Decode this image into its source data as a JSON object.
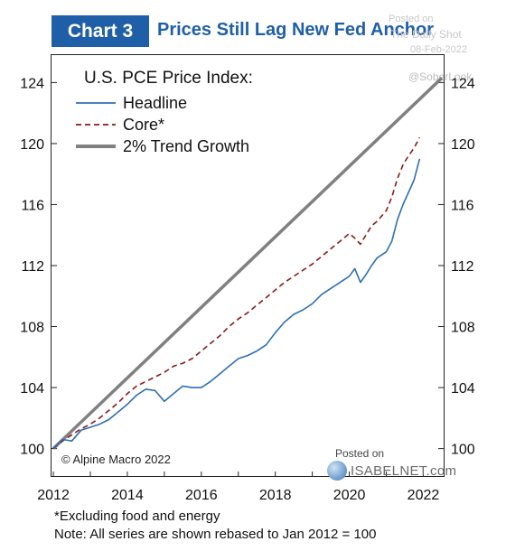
{
  "header": {
    "chart_number": "Chart 3",
    "title": "Prices Still Lag New Fed Anchor"
  },
  "watermark": {
    "posted_on": "Posted on",
    "source": "The Daily Shot",
    "date": "08-Feb-2022",
    "handle": "@SoberLook"
  },
  "credit": "© Alpine Macro 2022",
  "isabelnet": {
    "posted_on": "Posted on",
    "name": "ISABELNET.com"
  },
  "footnotes": [
    "*Excluding food and energy",
    "Note: All series are shown rebased to Jan 2012 = 100"
  ],
  "colors": {
    "headline": "#2e6fb5",
    "core": "#8b1a1a",
    "trend": "#808080",
    "header_blue": "#1f5fa8"
  },
  "chart_data": {
    "type": "line",
    "legend_title": "U.S. PCE Price Index:",
    "legend_position": "top-left",
    "x_ticks": [
      "2012",
      "2014",
      "2016",
      "2018",
      "2020",
      "2022"
    ],
    "y_ticks": [
      "100",
      "104",
      "108",
      "112",
      "116",
      "120",
      "124"
    ],
    "xlim": [
      2011.95,
      2022.55
    ],
    "ylim": [
      98.2,
      125.8
    ],
    "grid": false,
    "series": [
      {
        "name": "Headline",
        "style": "solid",
        "x": [
          2012.0,
          2012.25,
          2012.5,
          2012.75,
          2013.0,
          2013.25,
          2013.5,
          2013.75,
          2014.0,
          2014.25,
          2014.5,
          2014.75,
          2015.0,
          2015.25,
          2015.5,
          2015.75,
          2016.0,
          2016.25,
          2016.5,
          2016.75,
          2017.0,
          2017.25,
          2017.5,
          2017.75,
          2018.0,
          2018.25,
          2018.5,
          2018.75,
          2019.0,
          2019.25,
          2019.5,
          2019.75,
          2020.0,
          2020.15,
          2020.3,
          2020.45,
          2020.6,
          2020.75,
          2021.0,
          2021.15,
          2021.3,
          2021.45,
          2021.6,
          2021.75,
          2021.9
        ],
        "values": [
          100.0,
          100.6,
          100.5,
          101.2,
          101.4,
          101.6,
          101.9,
          102.4,
          102.9,
          103.5,
          103.9,
          103.8,
          103.1,
          103.6,
          104.1,
          104.0,
          104.0,
          104.4,
          104.9,
          105.4,
          105.9,
          106.1,
          106.4,
          106.8,
          107.6,
          108.3,
          108.8,
          109.1,
          109.5,
          110.1,
          110.5,
          110.9,
          111.3,
          111.8,
          110.9,
          111.4,
          112.0,
          112.5,
          112.9,
          113.6,
          115.0,
          116.0,
          116.8,
          117.6,
          119.0
        ]
      },
      {
        "name": "Core*",
        "style": "dashed",
        "x": [
          2012.0,
          2012.25,
          2012.5,
          2012.75,
          2013.0,
          2013.25,
          2013.5,
          2013.75,
          2014.0,
          2014.25,
          2014.5,
          2014.75,
          2015.0,
          2015.25,
          2015.5,
          2015.75,
          2016.0,
          2016.25,
          2016.5,
          2016.75,
          2017.0,
          2017.25,
          2017.5,
          2017.75,
          2018.0,
          2018.25,
          2018.5,
          2018.75,
          2019.0,
          2019.25,
          2019.5,
          2019.75,
          2020.0,
          2020.15,
          2020.3,
          2020.45,
          2020.6,
          2020.75,
          2021.0,
          2021.15,
          2021.3,
          2021.45,
          2021.6,
          2021.75,
          2021.9
        ],
        "values": [
          100.0,
          100.5,
          100.9,
          101.3,
          101.6,
          102.0,
          102.5,
          103.0,
          103.6,
          104.1,
          104.4,
          104.7,
          105.0,
          105.4,
          105.6,
          105.9,
          106.4,
          106.9,
          107.4,
          108.0,
          108.5,
          108.9,
          109.4,
          109.9,
          110.4,
          110.9,
          111.3,
          111.7,
          112.1,
          112.6,
          113.1,
          113.6,
          114.1,
          113.8,
          113.4,
          114.0,
          114.6,
          114.9,
          115.6,
          116.5,
          117.7,
          118.6,
          119.2,
          119.7,
          120.4
        ]
      },
      {
        "name": "2% Trend Growth",
        "style": "thick",
        "x": [
          2012.0,
          2022.5
        ],
        "values": [
          100.0,
          124.3
        ]
      }
    ]
  }
}
